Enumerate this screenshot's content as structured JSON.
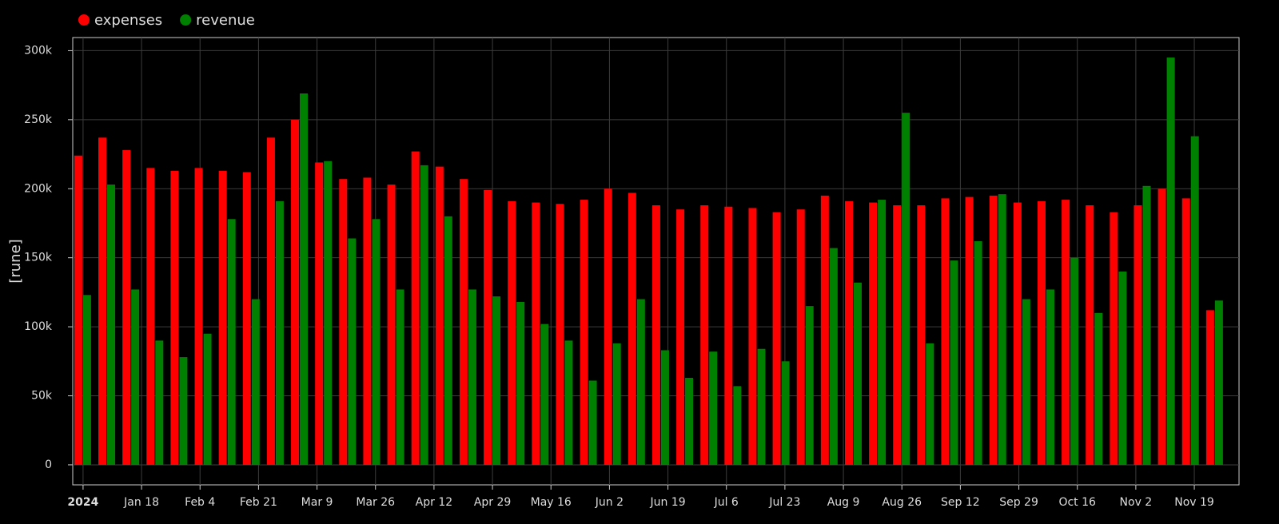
{
  "chart_data": {
    "type": "grouped-bar",
    "y_label": "[rune]",
    "x": [
      "2024-01-01",
      "2024-01-08",
      "2024-01-15",
      "2024-01-22",
      "2024-01-29",
      "2024-02-05",
      "2024-02-12",
      "2024-02-19",
      "2024-02-26",
      "2024-03-04",
      "2024-03-11",
      "2024-03-18",
      "2024-03-25",
      "2024-04-01",
      "2024-04-08",
      "2024-04-15",
      "2024-04-22",
      "2024-04-29",
      "2024-05-06",
      "2024-05-13",
      "2024-05-20",
      "2024-05-27",
      "2024-06-03",
      "2024-06-10",
      "2024-06-17",
      "2024-06-24",
      "2024-07-01",
      "2024-07-08",
      "2024-07-15",
      "2024-07-22",
      "2024-07-29",
      "2024-08-05",
      "2024-08-12",
      "2024-08-19",
      "2024-08-26",
      "2024-09-02",
      "2024-09-09",
      "2024-09-16",
      "2024-09-23",
      "2024-09-30",
      "2024-10-07",
      "2024-10-14",
      "2024-10-21",
      "2024-10-28",
      "2024-11-04",
      "2024-11-11",
      "2024-11-18",
      "2024-11-25"
    ],
    "series": [
      {
        "name": "expenses",
        "color": "#ff0000",
        "values": [
          224000,
          237000,
          228000,
          215000,
          213000,
          215000,
          213000,
          212000,
          237000,
          250000,
          219000,
          207000,
          208000,
          203000,
          227000,
          216000,
          207000,
          199000,
          191000,
          190000,
          189000,
          192000,
          200000,
          197000,
          188000,
          185000,
          188000,
          187000,
          186000,
          183000,
          185000,
          195000,
          191000,
          190000,
          188000,
          188000,
          193000,
          194000,
          195000,
          190000,
          191000,
          192000,
          188000,
          183000,
          188000,
          200000,
          193000,
          112000
        ]
      },
      {
        "name": "revenue",
        "color": "#008000",
        "values": [
          123000,
          203000,
          127000,
          90000,
          78000,
          95000,
          178000,
          120000,
          191000,
          269000,
          220000,
          164000,
          178000,
          127000,
          217000,
          180000,
          127000,
          122000,
          118000,
          102000,
          90000,
          61000,
          88000,
          120000,
          83000,
          63000,
          82000,
          57000,
          84000,
          75000,
          115000,
          157000,
          132000,
          192000,
          255000,
          88000,
          148000,
          162000,
          196000,
          120000,
          127000,
          150000,
          110000,
          140000,
          202000,
          295000,
          238000,
          119000
        ]
      }
    ],
    "xlim": [
      "2023-12-29",
      "2024-12-02"
    ],
    "xticks": [
      {
        "value": "2024-01-01",
        "label": "2024"
      },
      {
        "value": "2024-01-18",
        "label": "Jan 18"
      },
      {
        "value": "2024-02-04",
        "label": "Feb 4"
      },
      {
        "value": "2024-02-21",
        "label": "Feb 21"
      },
      {
        "value": "2024-03-09",
        "label": "Mar 9"
      },
      {
        "value": "2024-03-26",
        "label": "Mar 26"
      },
      {
        "value": "2024-04-12",
        "label": "Apr 12"
      },
      {
        "value": "2024-04-29",
        "label": "Apr 29"
      },
      {
        "value": "2024-05-16",
        "label": "May 16"
      },
      {
        "value": "2024-06-02",
        "label": "Jun 2"
      },
      {
        "value": "2024-06-19",
        "label": "Jun 19"
      },
      {
        "value": "2024-07-06",
        "label": "Jul 6"
      },
      {
        "value": "2024-07-23",
        "label": "Jul 23"
      },
      {
        "value": "2024-08-09",
        "label": "Aug 9"
      },
      {
        "value": "2024-08-26",
        "label": "Aug 26"
      },
      {
        "value": "2024-09-12",
        "label": "Sep 12"
      },
      {
        "value": "2024-09-29",
        "label": "Sep 29"
      },
      {
        "value": "2024-10-16",
        "label": "Oct 16"
      },
      {
        "value": "2024-11-02",
        "label": "Nov 2"
      },
      {
        "value": "2024-11-19",
        "label": "Nov 19"
      }
    ],
    "ylim": [
      -14500,
      309500
    ],
    "yticks": [
      0,
      {
        "value": 50000,
        "label": "50k"
      },
      {
        "value": 100000,
        "label": "100k"
      },
      {
        "value": 150000,
        "label": "150k"
      },
      {
        "value": 200000,
        "label": "200k"
      },
      {
        "value": 250000,
        "label": "250k"
      },
      {
        "value": 300000,
        "label": "300k"
      }
    ],
    "grid": true
  }
}
